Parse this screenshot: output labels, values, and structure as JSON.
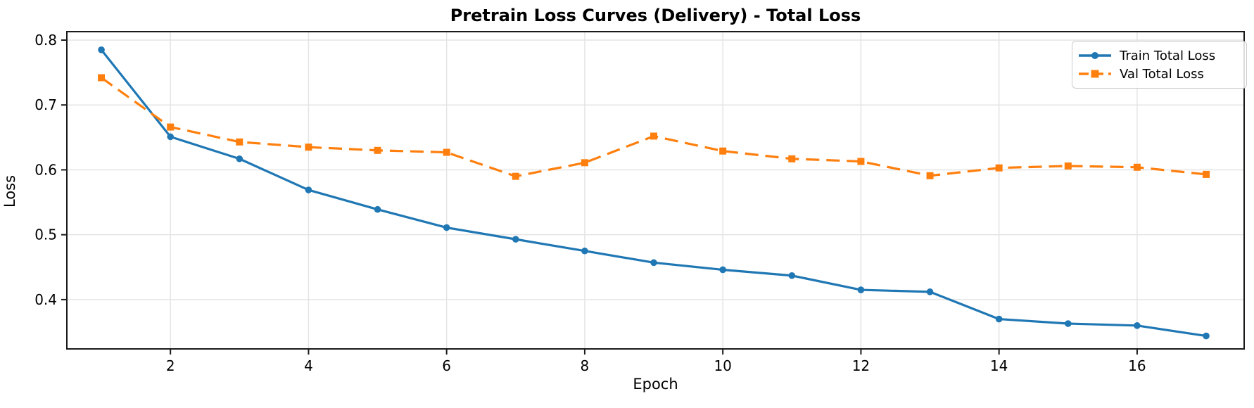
{
  "chart_data": {
    "type": "line",
    "title": "Pretrain Loss Curves (Delivery) - Total Loss",
    "xlabel": "Epoch",
    "ylabel": "Loss",
    "x": [
      1,
      2,
      3,
      4,
      5,
      6,
      7,
      8,
      9,
      10,
      11,
      12,
      13,
      14,
      15,
      16,
      17
    ],
    "series": [
      {
        "name": "Train Total Loss",
        "color": "#1f77b4",
        "line_style": "solid",
        "marker": "circle",
        "values": [
          0.785,
          0.651,
          0.617,
          0.569,
          0.539,
          0.511,
          0.493,
          0.475,
          0.457,
          0.446,
          0.437,
          0.415,
          0.412,
          0.37,
          0.363,
          0.36,
          0.344
        ]
      },
      {
        "name": "Val Total Loss",
        "color": "#ff7f0e",
        "line_style": "dashed",
        "marker": "square",
        "values": [
          0.742,
          0.666,
          0.643,
          0.635,
          0.63,
          0.627,
          0.59,
          0.611,
          0.652,
          0.629,
          0.617,
          0.613,
          0.591,
          0.603,
          0.606,
          0.604,
          0.593
        ]
      }
    ],
    "xticks": [
      2,
      4,
      6,
      8,
      10,
      12,
      14,
      16
    ],
    "yticks": [
      0.4,
      0.5,
      0.6,
      0.7,
      0.8
    ],
    "xlim": [
      0.5,
      17.55
    ],
    "ylim": [
      0.324,
      0.813
    ],
    "grid": true,
    "legend_position": "upper right",
    "colors": {
      "grid": "#e4e4e4",
      "spine": "#1a1a1a",
      "tick_text": "#000000",
      "background": "#ffffff"
    }
  }
}
